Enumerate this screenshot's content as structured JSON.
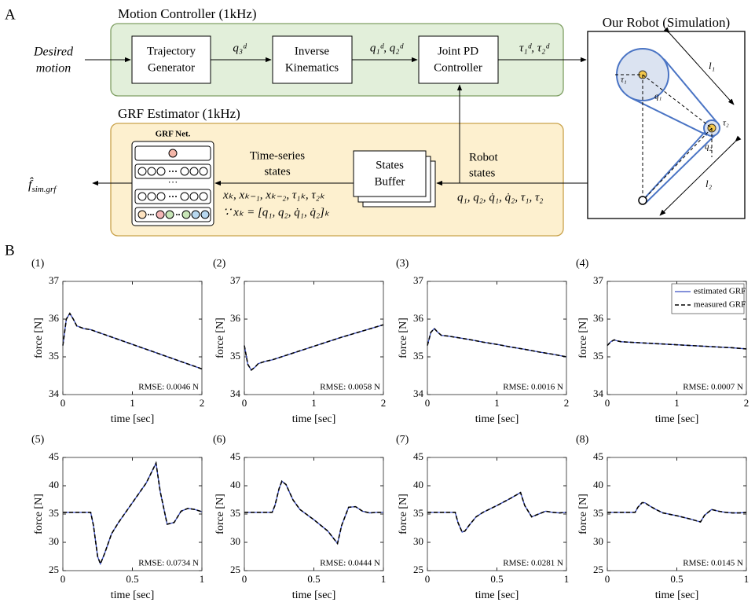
{
  "panels": {
    "a": "A",
    "b": "B"
  },
  "diagram": {
    "desired_motion": [
      "Desired",
      "motion"
    ],
    "motion_controller": {
      "title": "Motion Controller (1kHz)",
      "trajectory_generator": [
        "Trajectory",
        "Generator"
      ],
      "inverse_kinematics": [
        "Inverse",
        "Kinematics"
      ],
      "joint_pd_controller": [
        "Joint PD",
        "Controller"
      ],
      "q3d": "q₃ᵈ",
      "q12d": "q₁ᵈ, q₂ᵈ",
      "tau_d": "τ₁ᵈ, τ₂ᵈ"
    },
    "grf_estimator": {
      "title": "GRF Estimator (1kHz)",
      "grf_net": "GRF Net.",
      "ellipsis": "···",
      "time_series_states": [
        "Time-series",
        "states"
      ],
      "states_buffer": [
        "States",
        "Buffer"
      ],
      "robot_states": [
        "Robot",
        "states"
      ],
      "inputs": "xₖ, xₖ₋₁, xₖ₋₂, τ₁ₖ, τ₂ₖ",
      "definition": "∵ xₖ = [q₁, q₂, q̇₁, q̇₂]ₖ",
      "robot_signals": "q₁, q₂, q̇₁, q̇₂, τ₁, τ₂",
      "output": {
        "symbol": "f̂",
        "subscript": "sim.grf"
      }
    },
    "robot": {
      "title": "Our Robot (Simulation)",
      "l1": "l₁",
      "l2": "l₂",
      "tau1": "τ₁",
      "tau2": "τ₂",
      "q1": "q₁",
      "q2": "q₂"
    }
  },
  "chart_data": [
    {
      "type": "line",
      "title": "(1)",
      "xlabel": "time [sec]",
      "ylabel": "force [N]",
      "annotation": "RMSE: 0.0046 N",
      "x": [
        0,
        0.05,
        0.1,
        0.15,
        0.2,
        0.3,
        0.4,
        0.6,
        0.8,
        1,
        1.2,
        1.4,
        1.6,
        1.8,
        2
      ],
      "xlim": [
        0,
        2
      ],
      "xticks": [
        0,
        1,
        2
      ],
      "ylim": [
        34,
        37
      ],
      "yticks": [
        34,
        35,
        36,
        37
      ],
      "series": [
        {
          "color": "#3b4fc4",
          "line_style": "solid",
          "values": [
            35.3,
            36.0,
            36.15,
            36.0,
            35.82,
            35.75,
            35.72,
            35.59,
            35.46,
            35.33,
            35.2,
            35.07,
            34.94,
            34.81,
            34.68
          ]
        },
        {
          "color": "#000000",
          "line_style": "dashed",
          "values": [
            35.3,
            36.0,
            36.15,
            36.0,
            35.82,
            35.75,
            35.72,
            35.59,
            35.46,
            35.33,
            35.2,
            35.07,
            34.94,
            34.81,
            34.68
          ]
        }
      ]
    },
    {
      "type": "line",
      "title": "(2)",
      "xlabel": "time [sec]",
      "ylabel": "force [N]",
      "annotation": "RMSE: 0.0058 N",
      "x": [
        0,
        0.05,
        0.1,
        0.15,
        0.2,
        0.3,
        0.4,
        0.6,
        0.8,
        1,
        1.2,
        1.4,
        1.6,
        1.8,
        2
      ],
      "xlim": [
        0,
        2
      ],
      "xticks": [
        0,
        1,
        2
      ],
      "ylim": [
        34,
        37
      ],
      "yticks": [
        34,
        35,
        36,
        37
      ],
      "series": [
        {
          "color": "#3b4fc4",
          "line_style": "solid",
          "values": [
            35.3,
            34.8,
            34.65,
            34.72,
            34.82,
            34.88,
            34.92,
            35.04,
            35.16,
            35.28,
            35.4,
            35.52,
            35.63,
            35.74,
            35.85
          ]
        },
        {
          "color": "#000000",
          "line_style": "dashed",
          "values": [
            35.3,
            34.8,
            34.65,
            34.72,
            34.82,
            34.88,
            34.92,
            35.04,
            35.16,
            35.28,
            35.4,
            35.52,
            35.63,
            35.74,
            35.85
          ]
        }
      ]
    },
    {
      "type": "line",
      "title": "(3)",
      "xlabel": "time [sec]",
      "ylabel": "force [N]",
      "annotation": "RMSE: 0.0016 N",
      "x": [
        0,
        0.05,
        0.1,
        0.15,
        0.2,
        0.3,
        0.4,
        0.6,
        0.8,
        1,
        1.2,
        1.4,
        1.6,
        1.8,
        2
      ],
      "xlim": [
        0,
        2
      ],
      "xticks": [
        0,
        1,
        2
      ],
      "ylim": [
        34,
        37
      ],
      "yticks": [
        34,
        35,
        36,
        37
      ],
      "series": [
        {
          "color": "#3b4fc4",
          "line_style": "solid",
          "values": [
            35.3,
            35.65,
            35.75,
            35.65,
            35.57,
            35.55,
            35.52,
            35.46,
            35.39,
            35.33,
            35.26,
            35.2,
            35.13,
            35.07,
            35.0
          ]
        },
        {
          "color": "#000000",
          "line_style": "dashed",
          "values": [
            35.3,
            35.65,
            35.75,
            35.65,
            35.57,
            35.55,
            35.52,
            35.46,
            35.39,
            35.33,
            35.26,
            35.2,
            35.13,
            35.07,
            35.0
          ]
        }
      ]
    },
    {
      "type": "line",
      "title": "(4)",
      "xlabel": "time [sec]",
      "ylabel": "force [N]",
      "annotation": "RMSE: 0.0007 N",
      "legend": "upper right",
      "x": [
        0,
        0.05,
        0.1,
        0.15,
        0.2,
        0.3,
        0.4,
        0.6,
        0.8,
        1,
        1.2,
        1.4,
        1.6,
        1.8,
        2
      ],
      "xlim": [
        0,
        2
      ],
      "xticks": [
        0,
        1,
        2
      ],
      "ylim": [
        34,
        37
      ],
      "yticks": [
        34,
        35,
        36,
        37
      ],
      "series": [
        {
          "name": "estimated GRF",
          "color": "#3b4fc4",
          "line_style": "solid",
          "values": [
            35.3,
            35.4,
            35.45,
            35.42,
            35.4,
            35.39,
            35.38,
            35.36,
            35.34,
            35.32,
            35.3,
            35.28,
            35.26,
            35.24,
            35.21
          ]
        },
        {
          "name": "measured GRF",
          "color": "#000000",
          "line_style": "dashed",
          "values": [
            35.3,
            35.4,
            35.45,
            35.42,
            35.4,
            35.39,
            35.38,
            35.36,
            35.34,
            35.32,
            35.3,
            35.28,
            35.26,
            35.24,
            35.21
          ]
        }
      ]
    },
    {
      "type": "line",
      "title": "(5)",
      "xlabel": "time [sec]",
      "ylabel": "force [N]",
      "annotation": "RMSE: 0.0734 N",
      "x": [
        0,
        0.1,
        0.2,
        0.22,
        0.25,
        0.27,
        0.3,
        0.35,
        0.4,
        0.5,
        0.6,
        0.67,
        0.7,
        0.75,
        0.8,
        0.85,
        0.9,
        0.95,
        1
      ],
      "xlim": [
        0,
        1
      ],
      "xticks": [
        0,
        0.5,
        1
      ],
      "ylim": [
        25,
        45
      ],
      "yticks": [
        25,
        30,
        35,
        40,
        45
      ],
      "series": [
        {
          "color": "#3b4fc4",
          "line_style": "solid",
          "values": [
            35.3,
            35.3,
            35.3,
            33,
            27.5,
            26.2,
            28,
            31.5,
            33.5,
            37,
            40.5,
            44,
            39,
            33.2,
            33.5,
            35.5,
            36,
            35.8,
            35.4
          ]
        },
        {
          "color": "#000000",
          "line_style": "dashed",
          "values": [
            35.3,
            35.3,
            35.3,
            33,
            27.5,
            26.2,
            28,
            31.5,
            33.5,
            37,
            40.5,
            44,
            39,
            33.2,
            33.5,
            35.5,
            36,
            35.8,
            35.4
          ]
        }
      ]
    },
    {
      "type": "line",
      "title": "(6)",
      "xlabel": "time [sec]",
      "ylabel": "force [N]",
      "annotation": "RMSE: 0.0444 N",
      "x": [
        0,
        0.1,
        0.2,
        0.22,
        0.25,
        0.27,
        0.3,
        0.35,
        0.4,
        0.5,
        0.6,
        0.67,
        0.7,
        0.75,
        0.8,
        0.85,
        0.9,
        0.95,
        1
      ],
      "xlim": [
        0,
        1
      ],
      "xticks": [
        0,
        0.5,
        1
      ],
      "ylim": [
        25,
        45
      ],
      "yticks": [
        25,
        30,
        35,
        40,
        45
      ],
      "series": [
        {
          "color": "#3b4fc4",
          "line_style": "solid",
          "values": [
            35.3,
            35.3,
            35.3,
            36.5,
            39.5,
            40.8,
            40.2,
            37.5,
            35.8,
            34,
            32,
            29.8,
            33,
            36.2,
            36.3,
            35.5,
            35.2,
            35.3,
            35.3
          ]
        },
        {
          "color": "#000000",
          "line_style": "dashed",
          "values": [
            35.3,
            35.3,
            35.3,
            36.5,
            39.5,
            40.8,
            40.2,
            37.5,
            35.8,
            34,
            32,
            29.8,
            33,
            36.2,
            36.3,
            35.5,
            35.2,
            35.3,
            35.3
          ]
        }
      ]
    },
    {
      "type": "line",
      "title": "(7)",
      "xlabel": "time [sec]",
      "ylabel": "force [N]",
      "annotation": "RMSE: 0.0281 N",
      "x": [
        0,
        0.1,
        0.2,
        0.22,
        0.25,
        0.27,
        0.3,
        0.35,
        0.4,
        0.5,
        0.6,
        0.67,
        0.7,
        0.75,
        0.8,
        0.85,
        0.9,
        0.95,
        1
      ],
      "xlim": [
        0,
        1
      ],
      "xticks": [
        0,
        0.5,
        1
      ],
      "ylim": [
        25,
        45
      ],
      "yticks": [
        25,
        30,
        35,
        40,
        45
      ],
      "series": [
        {
          "color": "#3b4fc4",
          "line_style": "solid",
          "values": [
            35.3,
            35.3,
            35.3,
            33.5,
            31.8,
            32,
            33,
            34.5,
            35.3,
            36.5,
            37.8,
            38.8,
            36.5,
            34.5,
            35,
            35.5,
            35.3,
            35.2,
            35.3
          ]
        },
        {
          "color": "#000000",
          "line_style": "dashed",
          "values": [
            35.3,
            35.3,
            35.3,
            33.5,
            31.8,
            32,
            33,
            34.5,
            35.3,
            36.5,
            37.8,
            38.8,
            36.5,
            34.5,
            35,
            35.5,
            35.3,
            35.2,
            35.3
          ]
        }
      ]
    },
    {
      "type": "line",
      "title": "(8)",
      "xlabel": "time [sec]",
      "ylabel": "force [N]",
      "annotation": "RMSE: 0.0145 N",
      "x": [
        0,
        0.1,
        0.2,
        0.22,
        0.25,
        0.27,
        0.3,
        0.35,
        0.4,
        0.5,
        0.6,
        0.67,
        0.7,
        0.75,
        0.8,
        0.85,
        0.9,
        0.95,
        1
      ],
      "xlim": [
        0,
        1
      ],
      "xticks": [
        0,
        0.5,
        1
      ],
      "ylim": [
        25,
        45
      ],
      "yticks": [
        25,
        30,
        35,
        40,
        45
      ],
      "series": [
        {
          "color": "#3b4fc4",
          "line_style": "solid",
          "values": [
            35.3,
            35.3,
            35.3,
            36.2,
            37,
            37,
            36.5,
            35.8,
            35.2,
            34.7,
            34.1,
            33.6,
            34.8,
            35.8,
            35.5,
            35.3,
            35.2,
            35.2,
            35.3
          ]
        },
        {
          "color": "#000000",
          "line_style": "dashed",
          "values": [
            35.3,
            35.3,
            35.3,
            36.2,
            37,
            37,
            36.5,
            35.8,
            35.2,
            34.7,
            34.1,
            33.6,
            34.8,
            35.8,
            35.5,
            35.3,
            35.2,
            35.2,
            35.3
          ]
        }
      ]
    }
  ]
}
